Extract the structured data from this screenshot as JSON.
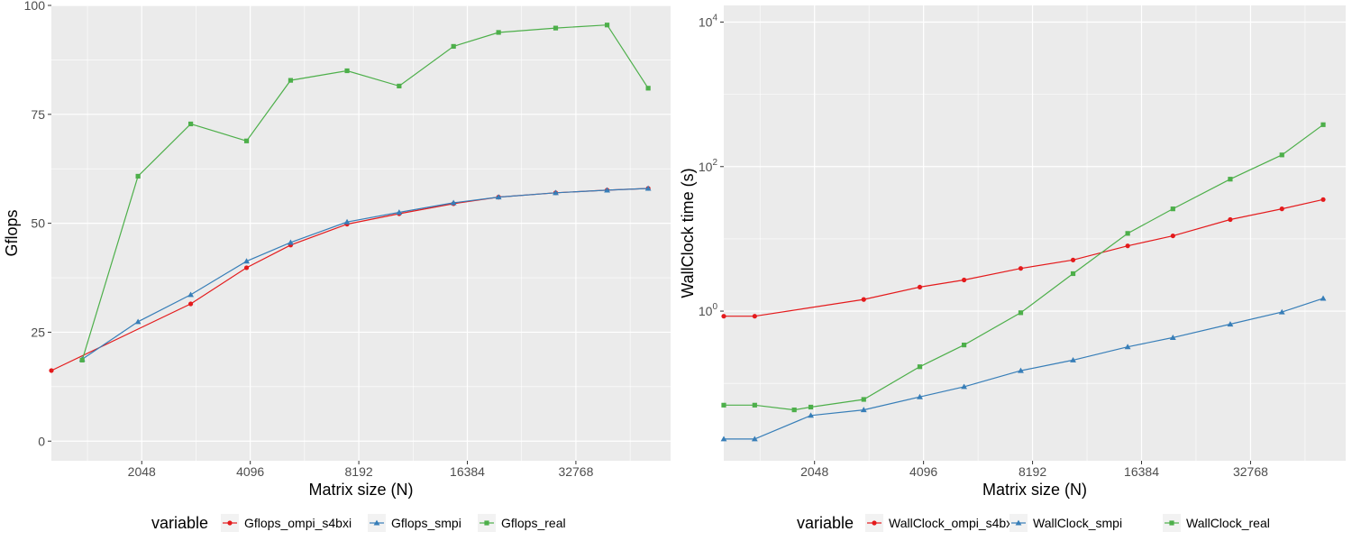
{
  "colors": {
    "red": "#e41a1c",
    "blue": "#377eb8",
    "green": "#4daf4a",
    "panel_bg": "#ebebeb",
    "grid": "#ffffff"
  },
  "chart_data": [
    {
      "type": "line",
      "xlabel": "Matrix size (N)",
      "ylabel": "Gflops",
      "x_scale": "log2",
      "y_scale": "linear",
      "xlim": [
        1150,
        60000
      ],
      "ylim": [
        -4.5,
        100
      ],
      "x_ticks": [
        2048,
        4096,
        8192,
        16384,
        32768
      ],
      "x_tick_labels": [
        "2048",
        "4096",
        "8192",
        "16384",
        "32768"
      ],
      "y_ticks": [
        0,
        25,
        50,
        75,
        100
      ],
      "y_tick_labels": [
        "0",
        "25",
        "50",
        "75",
        "100"
      ],
      "legend_title": "variable",
      "legend_position": "bottom",
      "x": [
        1400,
        2000,
        2800,
        4000,
        5300,
        7600,
        10600,
        15000,
        20000,
        28800,
        40000,
        52000
      ],
      "series": [
        {
          "name": "Gflops_ompi_s4bxi",
          "color": "red",
          "marker": "circle",
          "values": [
            null,
            null,
            31.5,
            39.8,
            45.0,
            49.8,
            52.2,
            54.5,
            56.0,
            57.0,
            57.6,
            58.0
          ]
        },
        {
          "name": "Gflops_smpi",
          "color": "blue",
          "marker": "triangle",
          "values": [
            18.8,
            27.4,
            33.6,
            41.3,
            45.6,
            50.3,
            52.5,
            54.7,
            56.0,
            57.0,
            57.6,
            58.0
          ]
        },
        {
          "name": "Gflops_real",
          "color": "green",
          "marker": "square",
          "values": [
            18.6,
            60.8,
            72.8,
            68.9,
            82.8,
            85.0,
            81.5,
            90.6,
            93.8,
            94.8,
            95.5,
            81.0
          ]
        }
      ],
      "extra_points": [
        {
          "series": 0,
          "x": 1150,
          "y": 16.2
        }
      ]
    },
    {
      "type": "line",
      "xlabel": "Matrix size (N)",
      "ylabel": "WallClock time (s)",
      "x_scale": "log2",
      "y_scale": "log10",
      "xlim": [
        1150,
        60000
      ],
      "ylim": [
        0.0085,
        17000
      ],
      "x_ticks": [
        2048,
        4096,
        8192,
        16384,
        32768
      ],
      "x_tick_labels": [
        "2048",
        "4096",
        "8192",
        "16384",
        "32768"
      ],
      "y_ticks": [
        1,
        100,
        10000
      ],
      "y_tick_labels": [
        {
          "base": "10",
          "exp": "0"
        },
        {
          "base": "10",
          "exp": "2"
        },
        {
          "base": "10",
          "exp": "4"
        }
      ],
      "legend_title": "variable",
      "legend_position": "bottom",
      "x": [
        1400,
        2000,
        2800,
        4000,
        5300,
        7600,
        10600,
        15000,
        20000,
        28800,
        40000,
        52000
      ],
      "series": [
        {
          "name": "WallClock_ompi_s4bxi",
          "color": "red",
          "marker": "circle",
          "values": [
            0.85,
            null,
            1.45,
            2.15,
            2.7,
            3.9,
            5.1,
            8.0,
            11.0,
            18.5,
            26.0,
            35.0
          ]
        },
        {
          "name": "WallClock_smpi",
          "color": "blue",
          "marker": "triangle",
          "values": [
            0.017,
            0.036,
            0.043,
            0.065,
            0.09,
            0.15,
            0.21,
            0.32,
            0.43,
            0.66,
            0.97,
            1.5
          ]
        },
        {
          "name": "WallClock_real",
          "color": "green",
          "marker": "square",
          "values": [
            0.05,
            0.047,
            0.06,
            0.17,
            0.34,
            0.95,
            3.3,
            11.9,
            26.0,
            67.0,
            145.0,
            380.0
          ]
        }
      ],
      "extra_points": [
        {
          "series": 0,
          "x": 1150,
          "y": 0.85
        },
        {
          "series": 1,
          "x": 1150,
          "y": 0.017
        },
        {
          "series": 2,
          "x": 1150,
          "y": 0.05
        },
        {
          "series": 2,
          "x": 1800,
          "y": 0.043
        }
      ]
    }
  ]
}
